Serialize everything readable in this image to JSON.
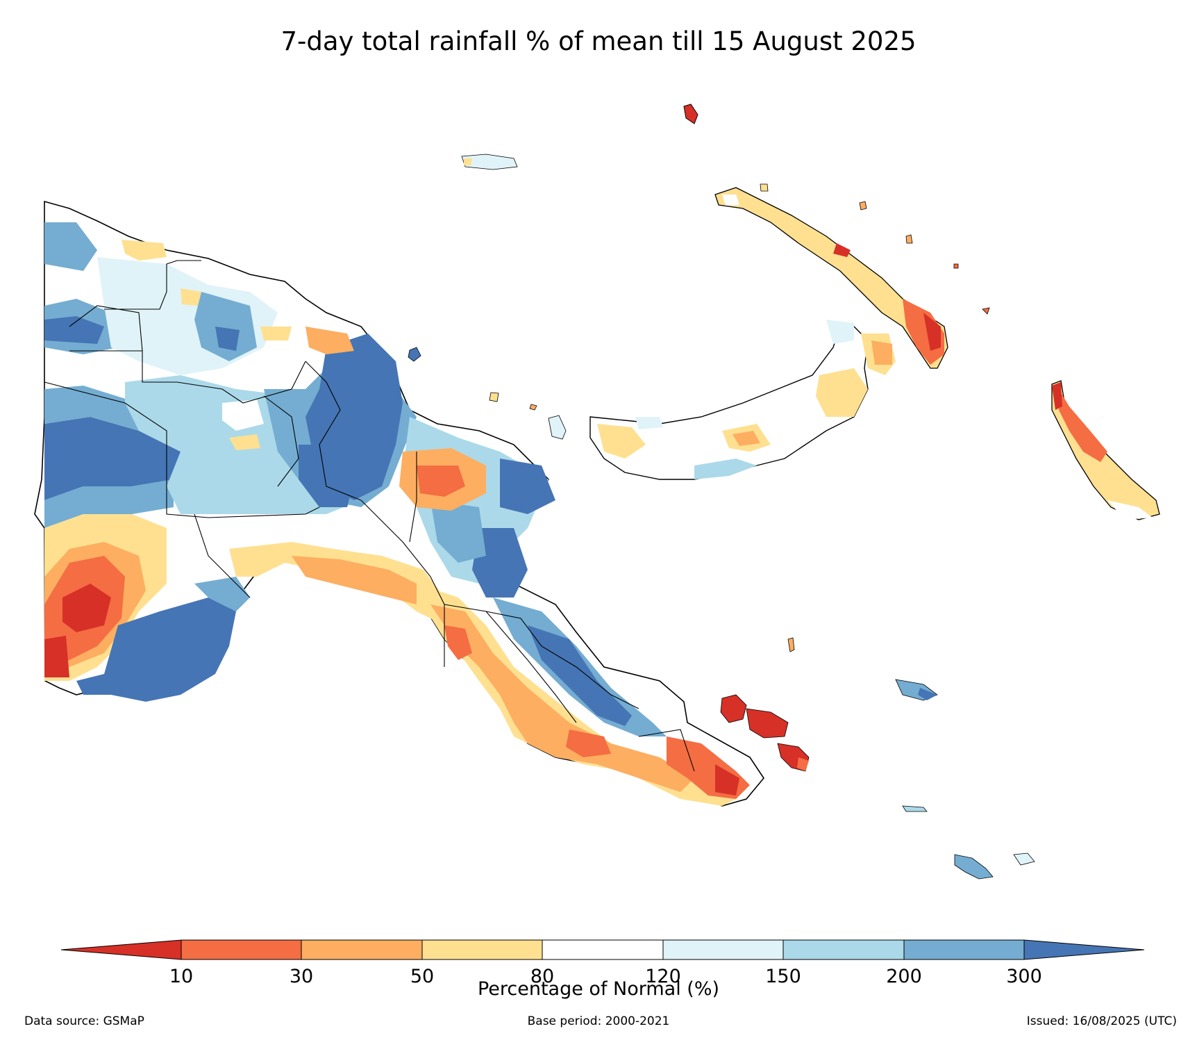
{
  "title": "7-day total rainfall % of mean till 15 August 2025",
  "legend": {
    "label": "Percentage of Normal (%)",
    "ticks": [
      "10",
      "30",
      "50",
      "80",
      "120",
      "150",
      "200",
      "300"
    ],
    "colors": [
      "#d73027",
      "#f46d43",
      "#fdae61",
      "#fee090",
      "#ffffff",
      "#e0f3f8",
      "#abd9e9",
      "#74add1",
      "#4575b4"
    ],
    "extend": "both"
  },
  "footer": {
    "source": "Data source: GSMaP",
    "base_period": "Base period: 2000-2021",
    "issued": "Issued: 16/08/2025 (UTC)"
  }
}
